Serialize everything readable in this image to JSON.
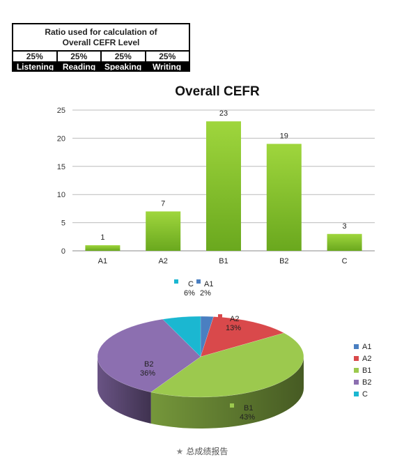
{
  "ratio_table": {
    "title_line1": "Ratio used for calculation of",
    "title_line2": "Overall CEFR Level",
    "columns": [
      {
        "percent": "25%",
        "skill": "Listening"
      },
      {
        "percent": "25%",
        "skill": "Reading"
      },
      {
        "percent": "25%",
        "skill": "Speaking"
      },
      {
        "percent": "25%",
        "skill": "Writing"
      }
    ]
  },
  "chart_data": [
    {
      "type": "bar",
      "title": "Overall CEFR",
      "categories": [
        "A1",
        "A2",
        "B1",
        "B2",
        "C"
      ],
      "values": [
        1,
        7,
        23,
        19,
        3
      ],
      "ylim": [
        0,
        25
      ],
      "yticks": [
        0,
        5,
        10,
        15,
        20,
        25
      ],
      "grid": true,
      "color": "#7cb826"
    },
    {
      "type": "pie",
      "style": "3d",
      "labels": [
        "A1",
        "A2",
        "B1",
        "B2",
        "C"
      ],
      "values": [
        2,
        13,
        43,
        36,
        6
      ],
      "value_labels": [
        "2%",
        "13%",
        "43%",
        "36%",
        "6%"
      ],
      "colors": [
        "#4a7fc1",
        "#d9494b",
        "#9cc94e",
        "#8c6fb0",
        "#1bb7d1"
      ],
      "legend": "right"
    }
  ],
  "caption": {
    "star": "★",
    "text": "总成绩报告"
  }
}
